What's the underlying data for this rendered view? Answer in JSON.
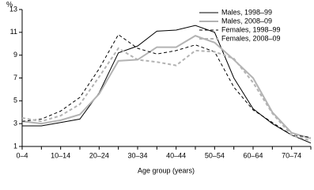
{
  "chart_data": {
    "type": "line",
    "y_label": "%",
    "x_label": "Age group (years)",
    "categories": [
      "0–4",
      null,
      "10–14",
      null,
      "20–24",
      null,
      "30–34",
      null,
      "40–44",
      null,
      "50–54",
      null,
      "60–64",
      null,
      "70–74",
      null
    ],
    "series": [
      {
        "name": "Males, 1998–99",
        "color": "#000000",
        "dash": false,
        "values": [
          2.8,
          2.8,
          3.1,
          3.4,
          5.7,
          9.2,
          9.8,
          11.1,
          11.2,
          11.6,
          11.0,
          7.0,
          4.3,
          3.0,
          2.0,
          1.3
        ]
      },
      {
        "name": "Males, 2008–09",
        "color": "#b3b3b3",
        "dash": false,
        "values": [
          3.2,
          3.0,
          3.3,
          3.8,
          5.6,
          8.5,
          8.6,
          9.7,
          9.7,
          10.7,
          10.1,
          8.6,
          7.0,
          4.0,
          2.2,
          1.7
        ]
      },
      {
        "name": "Females, 1998–99",
        "color": "#000000",
        "dash": true,
        "values": [
          3.2,
          3.4,
          4.1,
          5.3,
          7.8,
          10.8,
          9.6,
          9.1,
          9.4,
          9.9,
          9.3,
          6.2,
          4.2,
          3.1,
          2.0,
          1.8
        ]
      },
      {
        "name": "Females, 2008–09",
        "color": "#b3b3b3",
        "dash": true,
        "values": [
          3.5,
          3.2,
          3.7,
          4.7,
          7.1,
          9.6,
          8.6,
          8.4,
          8.1,
          9.4,
          9.3,
          8.7,
          6.6,
          3.9,
          2.0,
          1.5
        ]
      }
    ],
    "ylim": [
      1,
      13
    ],
    "yticks": [
      1,
      3,
      5,
      7,
      9,
      11,
      13
    ],
    "grid": false,
    "legend": "top-right"
  }
}
